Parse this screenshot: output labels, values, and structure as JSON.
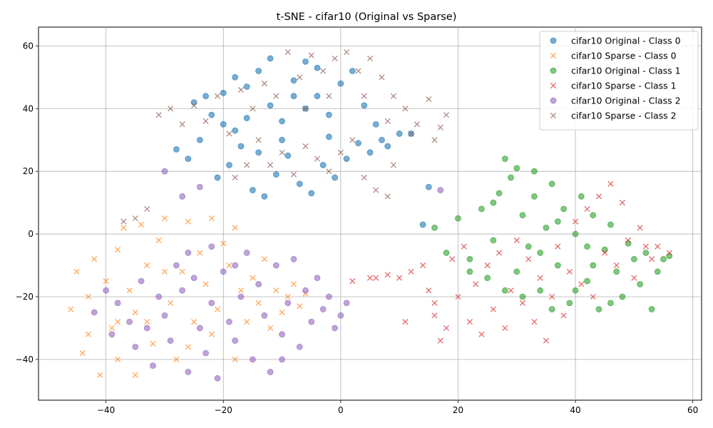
{
  "chart_data": {
    "type": "scatter",
    "title": "t-SNE - cifar10 (Original vs Sparse)",
    "xlabel": "",
    "ylabel": "",
    "xlim": [
      -51.5,
      61.5
    ],
    "ylim": [
      -53,
      66
    ],
    "xticks": [
      -40,
      -20,
      0,
      20,
      40,
      60
    ],
    "yticks": [
      -40,
      -20,
      0,
      20,
      40,
      60
    ],
    "xtick_labels": [
      "−40",
      "−20",
      "0",
      "20",
      "40",
      "60"
    ],
    "ytick_labels": [
      "−40",
      "−20",
      "0",
      "20",
      "40",
      "60"
    ],
    "grid": true,
    "legend_position": "top-right",
    "series": [
      {
        "name": "cifar10 Original - Class 0",
        "marker": "circle",
        "color": "#1f77b4",
        "points": [
          [
            -25,
            42
          ],
          [
            -22,
            38
          ],
          [
            -20,
            45
          ],
          [
            -18,
            33
          ],
          [
            -16,
            47
          ],
          [
            -14,
            52
          ],
          [
            -12,
            41
          ],
          [
            -10,
            36
          ],
          [
            -8,
            49
          ],
          [
            -6,
            55
          ],
          [
            -4,
            44
          ],
          [
            -2,
            38
          ],
          [
            0,
            48
          ],
          [
            2,
            52
          ],
          [
            4,
            41
          ],
          [
            6,
            35
          ],
          [
            8,
            28
          ],
          [
            10,
            32
          ],
          [
            12,
            32
          ],
          [
            -28,
            27
          ],
          [
            -26,
            24
          ],
          [
            -24,
            30
          ],
          [
            -21,
            18
          ],
          [
            -19,
            22
          ],
          [
            -17,
            28
          ],
          [
            -15,
            14
          ],
          [
            -13,
            12
          ],
          [
            -11,
            19
          ],
          [
            -9,
            25
          ],
          [
            -7,
            16
          ],
          [
            -5,
            13
          ],
          [
            -3,
            22
          ],
          [
            -1,
            18
          ],
          [
            1,
            24
          ],
          [
            3,
            29
          ],
          [
            5,
            26
          ],
          [
            7,
            30
          ],
          [
            -14,
            26
          ],
          [
            -10,
            30
          ],
          [
            -6,
            40
          ],
          [
            -2,
            31
          ],
          [
            -16,
            37
          ],
          [
            -8,
            44
          ],
          [
            -4,
            53
          ],
          [
            -18,
            50
          ],
          [
            -12,
            56
          ],
          [
            -20,
            35
          ],
          [
            -23,
            44
          ],
          [
            15,
            15
          ],
          [
            14,
            3
          ]
        ]
      },
      {
        "name": "cifar10 Sparse - Class 0",
        "marker": "x",
        "color": "#ff7f0e",
        "points": [
          [
            -45,
            -12
          ],
          [
            -43,
            -20
          ],
          [
            -42,
            -8
          ],
          [
            -40,
            -15
          ],
          [
            -39,
            -30
          ],
          [
            -38,
            -5
          ],
          [
            -37,
            2
          ],
          [
            -36,
            -18
          ],
          [
            -35,
            -25
          ],
          [
            -34,
            3
          ],
          [
            -33,
            -10
          ],
          [
            -32,
            -35
          ],
          [
            -31,
            -2
          ],
          [
            -30,
            5
          ],
          [
            -29,
            -22
          ],
          [
            -28,
            -40
          ],
          [
            -27,
            -12
          ],
          [
            -26,
            4
          ],
          [
            -25,
            -28
          ],
          [
            -24,
            -6
          ],
          [
            -23,
            -16
          ],
          [
            -22,
            -32
          ],
          [
            -21,
            -24
          ],
          [
            -20,
            -3
          ],
          [
            -19,
            -10
          ],
          [
            -18,
            2
          ],
          [
            -17,
            -18
          ],
          [
            -16,
            -28
          ],
          [
            -15,
            -14
          ],
          [
            -14,
            -22
          ],
          [
            -13,
            -8
          ],
          [
            -12,
            -30
          ],
          [
            -11,
            -18
          ],
          [
            -10,
            -25
          ],
          [
            -9,
            -20
          ],
          [
            -8,
            -16
          ],
          [
            -7,
            -23
          ],
          [
            -6,
            -19
          ],
          [
            -44,
            -38
          ],
          [
            -41,
            -45
          ],
          [
            -46,
            -24
          ],
          [
            -43,
            -32
          ],
          [
            -38,
            -40
          ],
          [
            -35,
            -45
          ],
          [
            -33,
            -28
          ],
          [
            -30,
            -12
          ],
          [
            -26,
            -36
          ],
          [
            -22,
            5
          ],
          [
            -18,
            -40
          ],
          [
            -38,
            -28
          ]
        ]
      },
      {
        "name": "cifar10 Original - Class 1",
        "marker": "circle",
        "color": "#2ca02c",
        "points": [
          [
            16,
            2
          ],
          [
            18,
            -6
          ],
          [
            20,
            5
          ],
          [
            22,
            -12
          ],
          [
            24,
            8
          ],
          [
            26,
            -2
          ],
          [
            27,
            13
          ],
          [
            28,
            24
          ],
          [
            29,
            18
          ],
          [
            30,
            21
          ],
          [
            31,
            6
          ],
          [
            32,
            -4
          ],
          [
            33,
            12
          ],
          [
            34,
            -18
          ],
          [
            35,
            2
          ],
          [
            36,
            16
          ],
          [
            37,
            -10
          ],
          [
            38,
            8
          ],
          [
            39,
            -22
          ],
          [
            40,
            0
          ],
          [
            41,
            12
          ],
          [
            42,
            -15
          ],
          [
            43,
            6
          ],
          [
            44,
            -24
          ],
          [
            45,
            -5
          ],
          [
            46,
            3
          ],
          [
            47,
            -12
          ],
          [
            48,
            -20
          ],
          [
            49,
            -3
          ],
          [
            50,
            -8
          ],
          [
            51,
            -16
          ],
          [
            52,
            -6
          ],
          [
            53,
            -24
          ],
          [
            54,
            -12
          ],
          [
            55,
            -8
          ],
          [
            56,
            -7
          ],
          [
            25,
            -14
          ],
          [
            28,
            -18
          ],
          [
            31,
            -20
          ],
          [
            34,
            -6
          ],
          [
            37,
            4
          ],
          [
            40,
            -18
          ],
          [
            43,
            -10
          ],
          [
            46,
            -22
          ],
          [
            22,
            -8
          ],
          [
            30,
            -12
          ],
          [
            36,
            -24
          ],
          [
            42,
            -4
          ],
          [
            26,
            10
          ],
          [
            33,
            20
          ]
        ]
      },
      {
        "name": "cifar10 Sparse - Class 1",
        "marker": "x",
        "color": "#d62728",
        "points": [
          [
            2,
            -15
          ],
          [
            5,
            -14
          ],
          [
            8,
            -13
          ],
          [
            10,
            -14
          ],
          [
            12,
            -12
          ],
          [
            14,
            -10
          ],
          [
            15,
            -18
          ],
          [
            16,
            -26
          ],
          [
            17,
            -34
          ],
          [
            18,
            -30
          ],
          [
            19,
            -8
          ],
          [
            20,
            -20
          ],
          [
            21,
            -4
          ],
          [
            22,
            -28
          ],
          [
            23,
            -16
          ],
          [
            24,
            -32
          ],
          [
            25,
            -10
          ],
          [
            26,
            -24
          ],
          [
            27,
            -6
          ],
          [
            28,
            -30
          ],
          [
            29,
            -18
          ],
          [
            30,
            -2
          ],
          [
            31,
            -22
          ],
          [
            32,
            -8
          ],
          [
            33,
            -28
          ],
          [
            34,
            -14
          ],
          [
            35,
            -34
          ],
          [
            36,
            -20
          ],
          [
            37,
            -4
          ],
          [
            38,
            -26
          ],
          [
            39,
            -12
          ],
          [
            40,
            4
          ],
          [
            41,
            -16
          ],
          [
            42,
            8
          ],
          [
            43,
            -20
          ],
          [
            44,
            12
          ],
          [
            45,
            -6
          ],
          [
            46,
            16
          ],
          [
            47,
            -10
          ],
          [
            48,
            10
          ],
          [
            49,
            -2
          ],
          [
            50,
            -14
          ],
          [
            51,
            2
          ],
          [
            52,
            -4
          ],
          [
            53,
            -8
          ],
          [
            54,
            -4
          ],
          [
            56,
            -6
          ],
          [
            11,
            -28
          ],
          [
            16,
            -22
          ],
          [
            6,
            -14
          ]
        ]
      },
      {
        "name": "cifar10 Original - Class 2",
        "marker": "circle",
        "color": "#9467bd",
        "points": [
          [
            -42,
            -25
          ],
          [
            -40,
            -18
          ],
          [
            -39,
            -32
          ],
          [
            -38,
            -22
          ],
          [
            -36,
            -28
          ],
          [
            -35,
            -36
          ],
          [
            -34,
            -15
          ],
          [
            -33,
            -30
          ],
          [
            -32,
            -42
          ],
          [
            -31,
            -20
          ],
          [
            -30,
            -26
          ],
          [
            -29,
            -34
          ],
          [
            -28,
            -10
          ],
          [
            -27,
            -18
          ],
          [
            -26,
            -6
          ],
          [
            -25,
            -14
          ],
          [
            -24,
            -30
          ],
          [
            -23,
            -38
          ],
          [
            -22,
            -22
          ],
          [
            -21,
            -46
          ],
          [
            -20,
            -12
          ],
          [
            -19,
            -28
          ],
          [
            -18,
            -34
          ],
          [
            -17,
            -20
          ],
          [
            -16,
            -6
          ],
          [
            -15,
            -40
          ],
          [
            -14,
            -16
          ],
          [
            -13,
            -26
          ],
          [
            -12,
            -44
          ],
          [
            -11,
            -10
          ],
          [
            -10,
            -32
          ],
          [
            -9,
            -22
          ],
          [
            -8,
            -8
          ],
          [
            -7,
            -36
          ],
          [
            -6,
            -18
          ],
          [
            -5,
            -28
          ],
          [
            -4,
            -14
          ],
          [
            -3,
            -24
          ],
          [
            -2,
            -20
          ],
          [
            -1,
            -30
          ],
          [
            0,
            -26
          ],
          [
            1,
            -22
          ],
          [
            -26,
            -44
          ],
          [
            -22,
            -4
          ],
          [
            -18,
            -10
          ],
          [
            -10,
            -40
          ],
          [
            -30,
            20
          ],
          [
            -27,
            12
          ],
          [
            -24,
            15
          ],
          [
            17,
            14
          ]
        ]
      },
      {
        "name": "cifar10 Sparse - Class 2",
        "marker": "x",
        "color": "#8c564b",
        "points": [
          [
            -31,
            38
          ],
          [
            -29,
            40
          ],
          [
            -27,
            35
          ],
          [
            -25,
            41
          ],
          [
            -23,
            36
          ],
          [
            -21,
            44
          ],
          [
            -19,
            32
          ],
          [
            -17,
            46
          ],
          [
            -15,
            40
          ],
          [
            -13,
            48
          ],
          [
            -11,
            44
          ],
          [
            -9,
            58
          ],
          [
            -7,
            50
          ],
          [
            -5,
            57
          ],
          [
            -3,
            52
          ],
          [
            -1,
            56
          ],
          [
            1,
            58
          ],
          [
            3,
            52
          ],
          [
            5,
            56
          ],
          [
            7,
            50
          ],
          [
            9,
            44
          ],
          [
            11,
            40
          ],
          [
            13,
            35
          ],
          [
            15,
            43
          ],
          [
            16,
            30
          ],
          [
            17,
            34
          ],
          [
            18,
            38
          ],
          [
            -14,
            30
          ],
          [
            -12,
            22
          ],
          [
            -10,
            26
          ],
          [
            -8,
            19
          ],
          [
            -6,
            28
          ],
          [
            -4,
            24
          ],
          [
            -2,
            20
          ],
          [
            0,
            26
          ],
          [
            2,
            30
          ],
          [
            4,
            18
          ],
          [
            6,
            14
          ],
          [
            8,
            12
          ],
          [
            9,
            22
          ],
          [
            -16,
            22
          ],
          [
            -18,
            18
          ],
          [
            -6,
            40
          ],
          [
            -2,
            44
          ],
          [
            4,
            44
          ],
          [
            8,
            36
          ],
          [
            12,
            32
          ],
          [
            -37,
            4
          ],
          [
            -35,
            5
          ],
          [
            -33,
            8
          ]
        ]
      }
    ]
  }
}
